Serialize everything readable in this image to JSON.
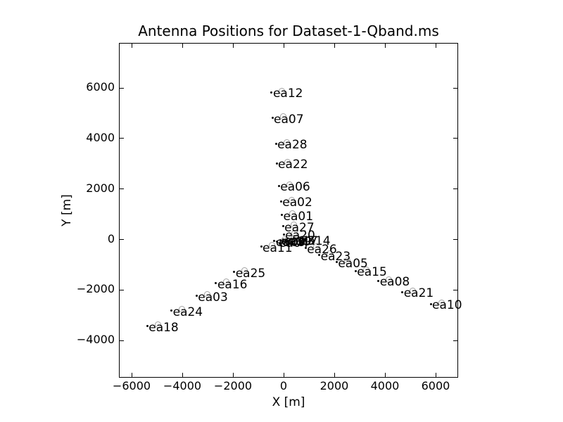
{
  "window": {
    "background_color": "#ffffff",
    "axis_color": "#000000",
    "text_color": "#000000",
    "marker_color": "#0a0a0a",
    "ghost_circle_color": "#a3a3a3"
  },
  "chart_data": {
    "type": "scatter",
    "title": "Antenna Positions for Dataset-1-Qband.ms",
    "xlabel": "X [m]",
    "ylabel": "Y [m]",
    "xlim": [
      -6500,
      6890
    ],
    "ylim": [
      -5500,
      7760
    ],
    "xticks": [
      -6000,
      -4000,
      -2000,
      0,
      2000,
      4000,
      6000
    ],
    "yticks": [
      -4000,
      -2000,
      0,
      2000,
      4000,
      6000
    ],
    "grid": false,
    "legend": "none",
    "marker": "small black dot with faint open circle, label text to the right",
    "points": [
      {
        "label": "ea01",
        "x": -95,
        "y": 975
      },
      {
        "label": "ea02",
        "x": -130,
        "y": 1520
      },
      {
        "label": "ea03",
        "x": -3465,
        "y": -2240
      },
      {
        "label": "ea04",
        "x": -280,
        "y": -85
      },
      {
        "label": "ea05",
        "x": 2065,
        "y": -895
      },
      {
        "label": "ea06",
        "x": -215,
        "y": 2120
      },
      {
        "label": "ea07",
        "x": -470,
        "y": 4815
      },
      {
        "label": "ea08",
        "x": 3715,
        "y": -1640
      },
      {
        "label": "ea09",
        "x": -390,
        "y": -55
      },
      {
        "label": "ea10",
        "x": 5780,
        "y": -2550
      },
      {
        "label": "ea11",
        "x": -915,
        "y": -290
      },
      {
        "label": "ea12",
        "x": -500,
        "y": 5835
      },
      {
        "label": "ea13",
        "x": -55,
        "y": -5
      },
      {
        "label": "ea14",
        "x": 585,
        "y": -15
      },
      {
        "label": "ea15",
        "x": 2815,
        "y": -1250
      },
      {
        "label": "ea16",
        "x": -2695,
        "y": -1730
      },
      {
        "label": "ea17",
        "x": 85,
        "y": -20
      },
      {
        "label": "ea18",
        "x": -5410,
        "y": -3430
      },
      {
        "label": "ea19",
        "x": -165,
        "y": -30
      },
      {
        "label": "ea20",
        "x": -20,
        "y": 205
      },
      {
        "label": "ea21",
        "x": 4660,
        "y": -2075
      },
      {
        "label": "ea22",
        "x": -305,
        "y": 3020
      },
      {
        "label": "ea23",
        "x": 1380,
        "y": -620
      },
      {
        "label": "ea24",
        "x": -4455,
        "y": -2825
      },
      {
        "label": "ea25",
        "x": -1980,
        "y": -1285
      },
      {
        "label": "ea26",
        "x": 840,
        "y": -340
      },
      {
        "label": "ea27",
        "x": -50,
        "y": 525
      },
      {
        "label": "ea28",
        "x": -330,
        "y": 3795
      }
    ]
  }
}
